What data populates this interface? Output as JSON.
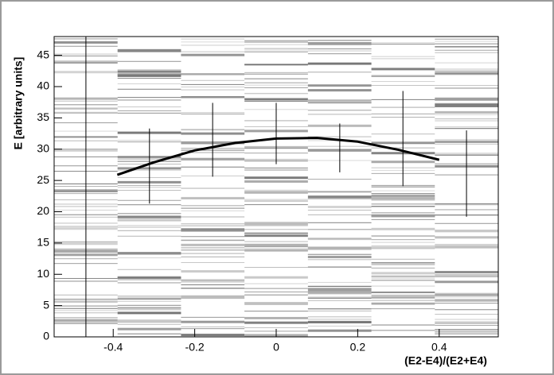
{
  "chart_data": {
    "type": "errorbar",
    "ylabel": "E [arbitrary units]",
    "xlabel": "(E2-E4)/(E2+E4)",
    "x": [
      -0.467,
      -0.311,
      -0.156,
      0,
      0.156,
      0.311,
      0.467
    ],
    "values": [
      24,
      27.3,
      31.5,
      32.5,
      30.2,
      31.7,
      26.1
    ],
    "errors": [
      24,
      6,
      5.9,
      4.9,
      3.9,
      7.6,
      6.9
    ],
    "color": "#000000",
    "fit": {
      "color": "#000000",
      "x": [
        -0.39,
        -0.3,
        -0.2,
        -0.1,
        0,
        0.1,
        0.2,
        0.3,
        0.4
      ],
      "y": [
        25.9,
        27.9,
        29.8,
        31.0,
        31.7,
        31.8,
        31.2,
        29.9,
        28.3
      ]
    },
    "xlim": [
      -0.545,
      0.545
    ],
    "ylim": [
      0,
      48
    ],
    "xticks": [
      -0.4,
      -0.2,
      0,
      0.2,
      0.4
    ],
    "yticks": [
      0,
      5,
      10,
      15,
      20,
      25,
      30,
      35,
      40,
      45
    ]
  }
}
